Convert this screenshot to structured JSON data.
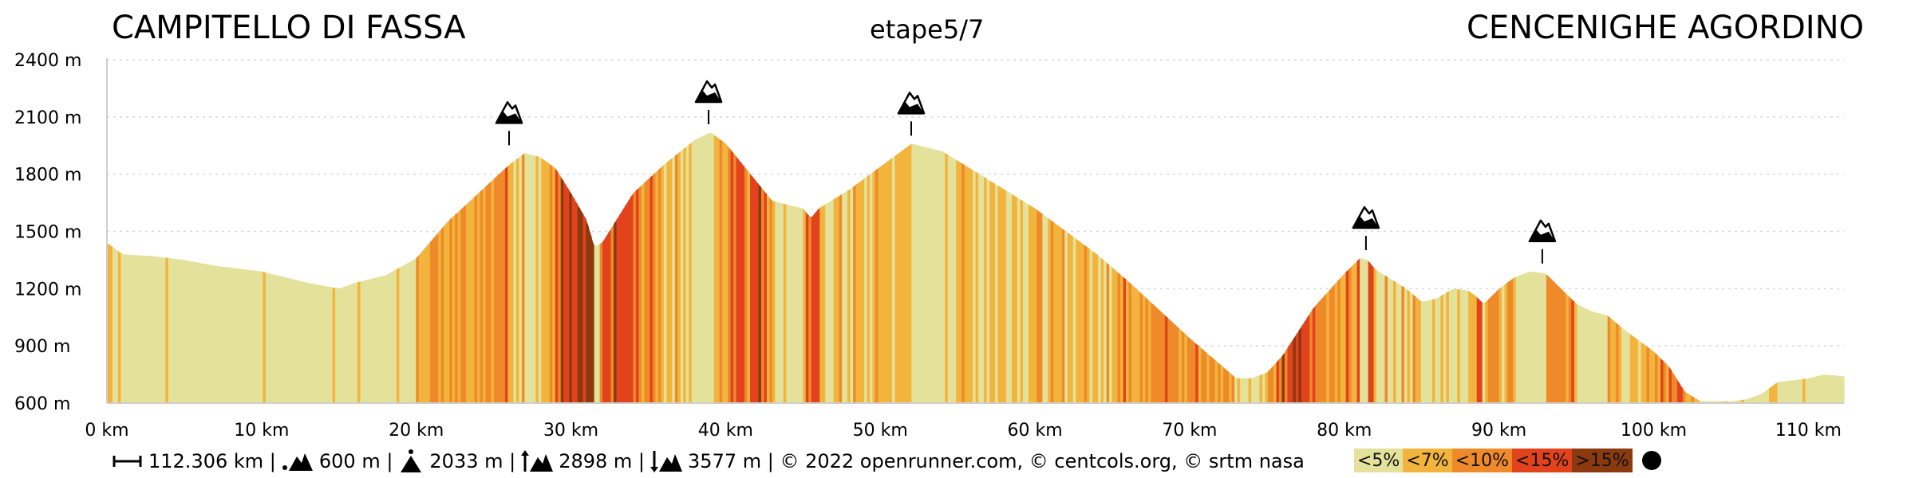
{
  "header": {
    "start": "CAMPITELLO DI FASSA",
    "stage": "etape5/7",
    "end": "CENCENIGHE AGORDINO"
  },
  "chart_data": {
    "type": "area",
    "title": "",
    "xlabel": "",
    "ylabel": "",
    "x_unit": "km",
    "y_unit": "m",
    "xlim": [
      0,
      112.306
    ],
    "ylim": [
      600,
      2400
    ],
    "x_ticks": [
      0,
      10,
      20,
      30,
      40,
      50,
      60,
      70,
      80,
      90,
      100,
      110
    ],
    "y_ticks": [
      600,
      900,
      1200,
      1500,
      1800,
      2100,
      2400
    ],
    "x_tick_labels": [
      "0 km",
      "10 km",
      "20 km",
      "30 km",
      "40 km",
      "50 km",
      "60 km",
      "70 km",
      "80 km",
      "90 km",
      "100 km",
      "110 km"
    ],
    "y_tick_labels": [
      "600 m",
      "900 m",
      "1200 m",
      "1500 m",
      "1800 m",
      "2100 m",
      "2400 m"
    ],
    "grid": "horizontal dotted",
    "profile": {
      "distance_km": [
        0,
        1,
        3,
        5,
        7,
        9,
        10,
        12,
        13,
        15,
        16,
        18,
        20,
        22,
        24,
        26,
        27,
        28,
        29,
        30,
        31,
        31.5,
        32,
        34,
        36,
        38,
        39,
        40,
        41,
        42,
        43,
        44,
        45,
        45.5,
        46,
        48,
        50,
        52,
        53,
        54,
        56,
        58,
        60,
        62,
        64,
        66,
        68,
        70,
        72,
        73,
        74,
        75,
        76,
        78,
        80,
        81,
        81.5,
        82,
        83,
        84,
        85,
        86,
        87,
        88,
        88.5,
        89,
        90,
        91,
        92,
        93,
        94,
        95,
        96,
        97,
        98,
        100,
        101,
        102,
        103,
        104,
        105,
        106,
        107,
        108,
        110,
        111,
        112.306
      ],
      "elevation_m": [
        1440,
        1380,
        1370,
        1350,
        1320,
        1300,
        1290,
        1250,
        1230,
        1200,
        1230,
        1270,
        1360,
        1550,
        1700,
        1850,
        1910,
        1890,
        1830,
        1700,
        1560,
        1420,
        1440,
        1700,
        1850,
        1980,
        2020,
        1960,
        1860,
        1760,
        1660,
        1640,
        1620,
        1570,
        1620,
        1720,
        1840,
        1960,
        1940,
        1920,
        1820,
        1720,
        1620,
        1500,
        1380,
        1240,
        1090,
        940,
        800,
        730,
        730,
        760,
        850,
        1100,
        1280,
        1360,
        1350,
        1300,
        1250,
        1200,
        1130,
        1150,
        1200,
        1190,
        1160,
        1120,
        1200,
        1260,
        1290,
        1280,
        1200,
        1120,
        1080,
        1060,
        990,
        870,
        790,
        660,
        610,
        610,
        610,
        620,
        650,
        710,
        730,
        750,
        740,
        740
      ]
    },
    "gradient_classes": [
      "<5%",
      "<7%",
      "<10%",
      "<15%",
      ">15%"
    ],
    "gradient_colors": [
      "#e4e29a",
      "#f2b43c",
      "#ee8a2a",
      "#e2431c",
      "#8b3a10"
    ],
    "summits": [
      {
        "km": 26,
        "elevation_m": 1910
      },
      {
        "km": 38.9,
        "elevation_m": 2020
      },
      {
        "km": 52,
        "elevation_m": 1960
      },
      {
        "km": 81.4,
        "elevation_m": 1360
      },
      {
        "km": 92.8,
        "elevation_m": 1290
      }
    ]
  },
  "footer": {
    "distance": "112.306 km |",
    "min_alt": "600 m |",
    "max_alt": "2033 m |",
    "ascent": "2898 m |",
    "descent": "3577 m | © 2022 openrunner.com, © centcols.org, © srtm nasa"
  },
  "legend": {
    "labels": [
      "<5%",
      "<7%",
      "<10%",
      "<15%",
      ">15%"
    ],
    "colors": [
      "#e4e29a",
      "#f2b43c",
      "#ee8a2a",
      "#e2431c",
      "#8b3a10"
    ]
  }
}
